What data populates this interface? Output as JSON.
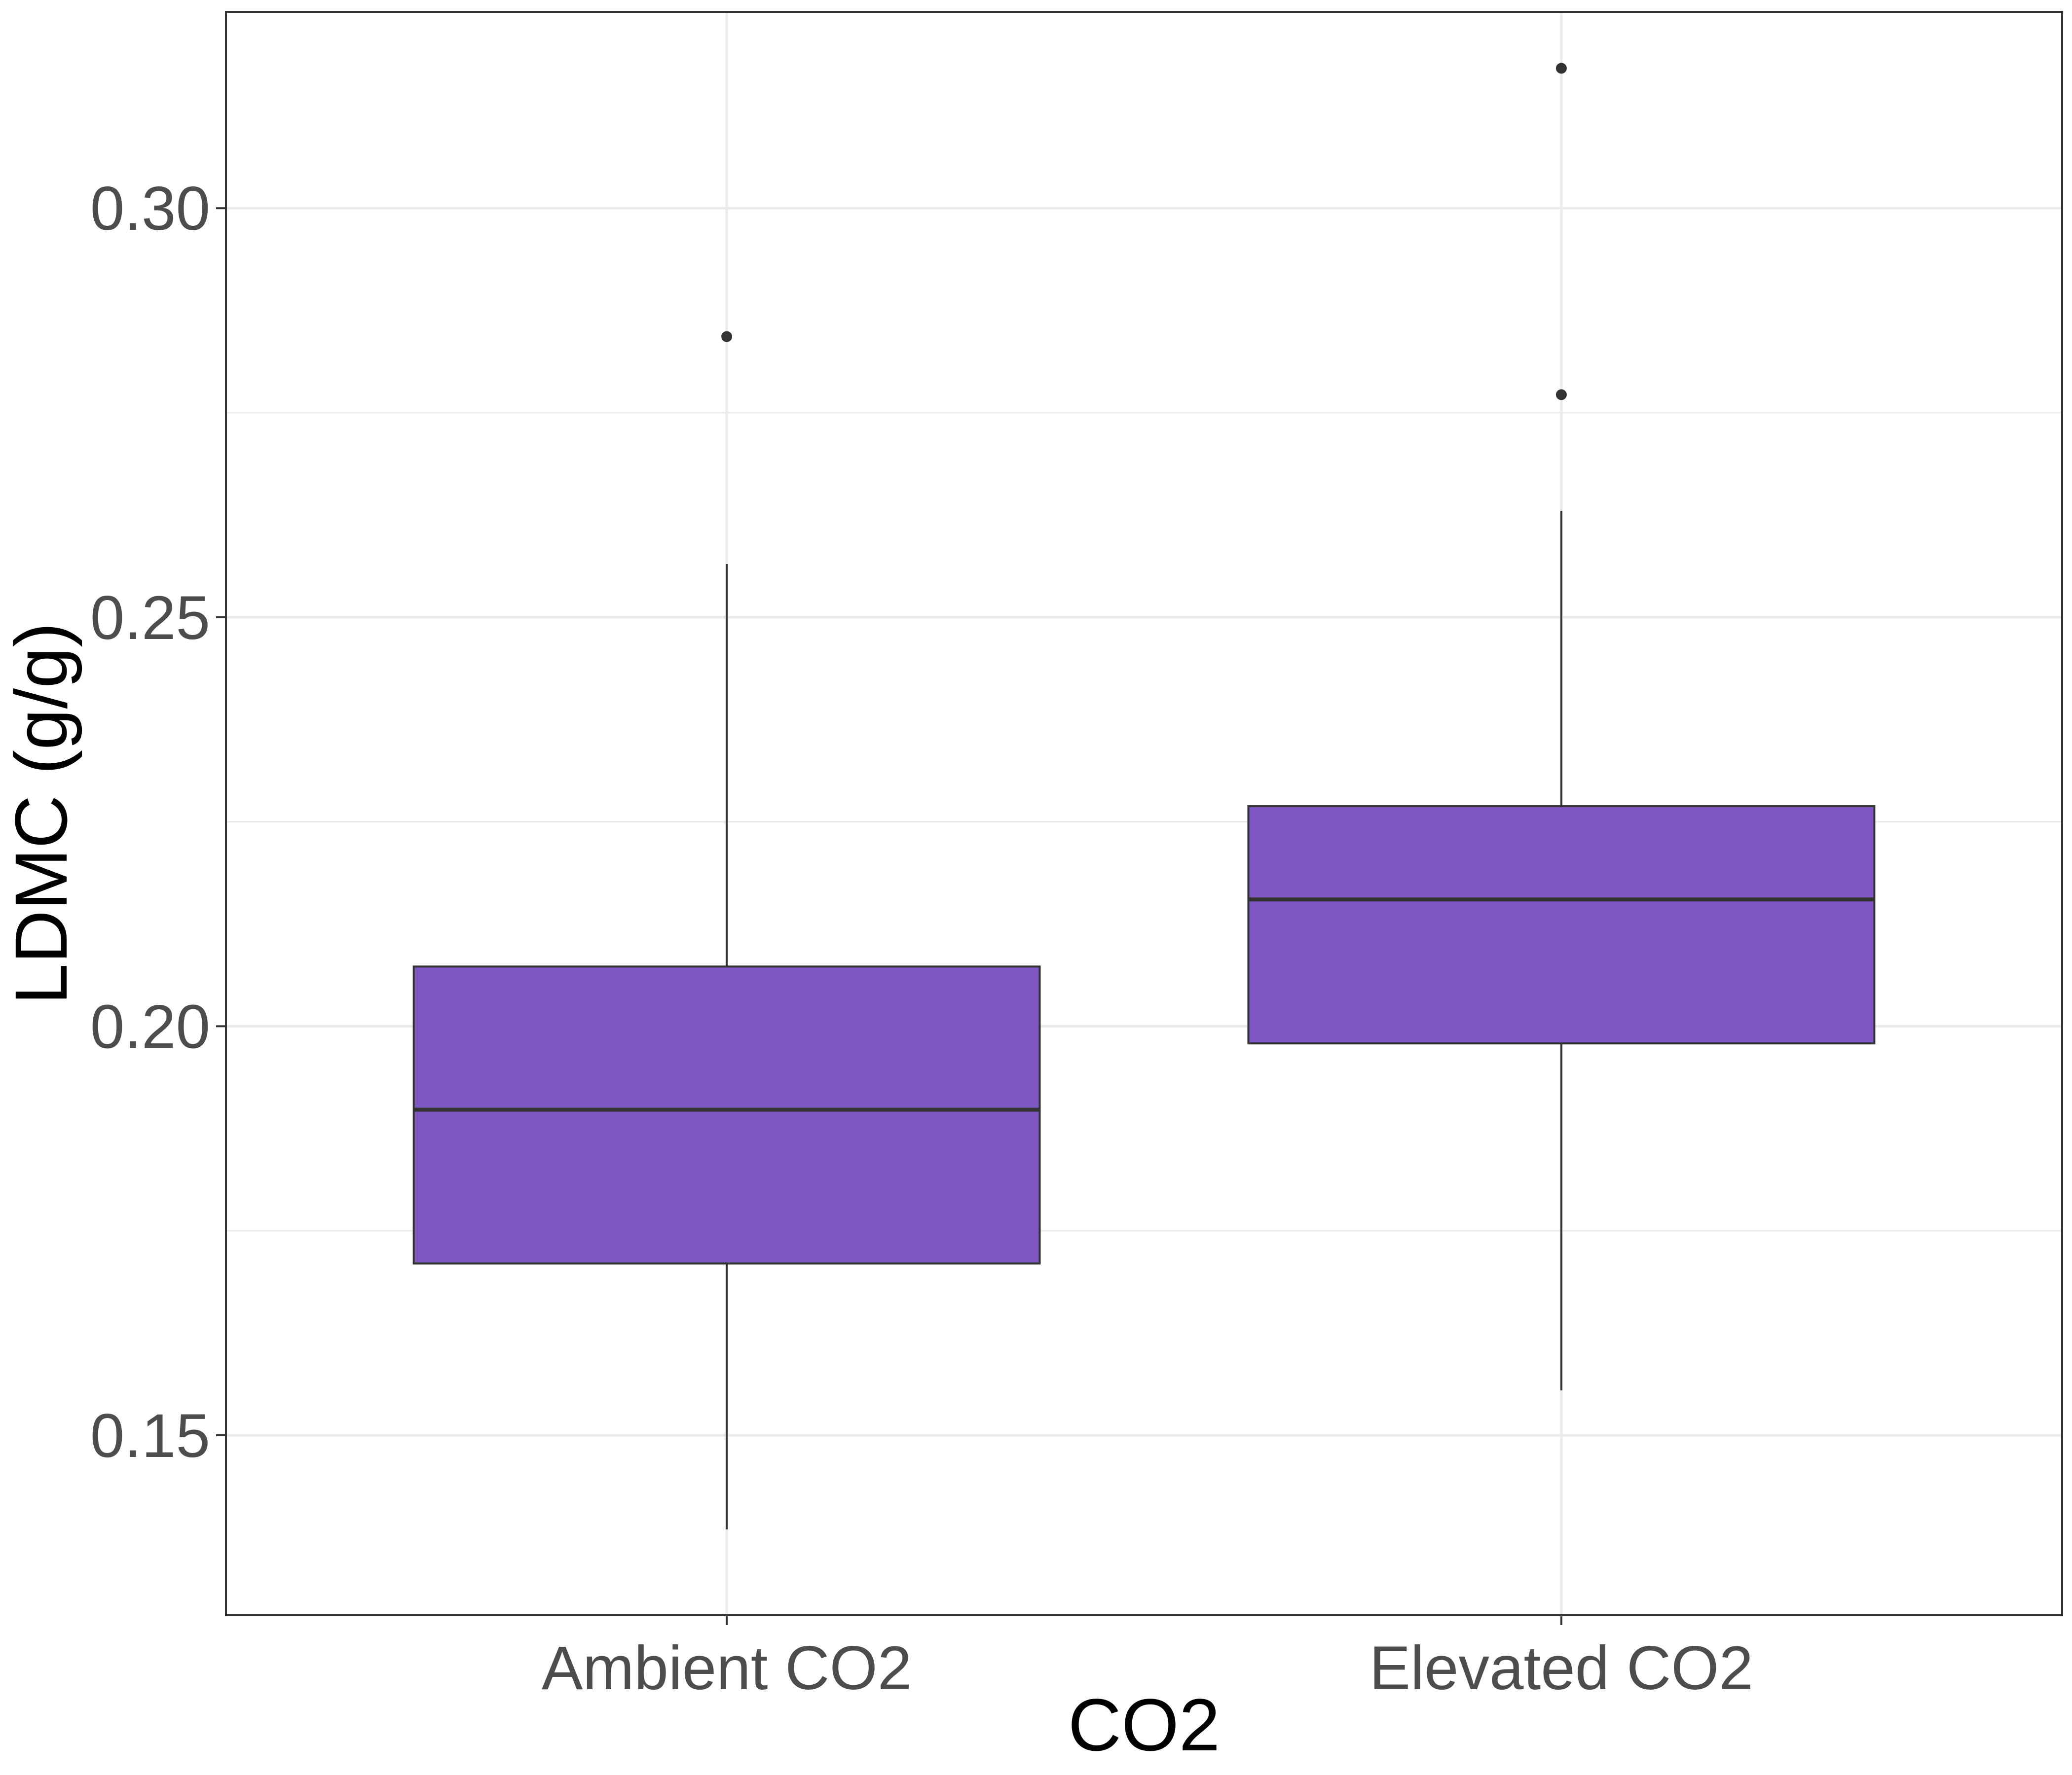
{
  "chart_data": {
    "type": "box",
    "title": "",
    "xlabel": "CO2",
    "ylabel": "LDMC (g/g)",
    "ylim": [
      0.128,
      0.324
    ],
    "y_ticks": [
      "0.15",
      "0.20",
      "0.25",
      "0.30"
    ],
    "y_minor_grid": [
      0.175,
      0.225,
      0.275
    ],
    "grid": true,
    "categories": [
      "Ambient CO2",
      "Elevated CO2"
    ],
    "boxes": [
      {
        "category": "Ambient CO2",
        "whisker_low": 0.1385,
        "q1": 0.171,
        "median": 0.1898,
        "q3": 0.2073,
        "whisker_high": 0.2565,
        "outliers": [
          0.2843
        ]
      },
      {
        "category": "Elevated CO2",
        "whisker_low": 0.1555,
        "q1": 0.1979,
        "median": 0.2155,
        "q3": 0.2269,
        "whisker_high": 0.263,
        "outliers": [
          0.2772,
          0.3171
        ]
      }
    ],
    "colors": {
      "box_fill": "#7e57c2",
      "box_stroke": "#333333",
      "grid": "#ebebeb",
      "panel_border": "#333333",
      "tick_text": "#4d4d4d",
      "title_text": "#000000"
    }
  }
}
